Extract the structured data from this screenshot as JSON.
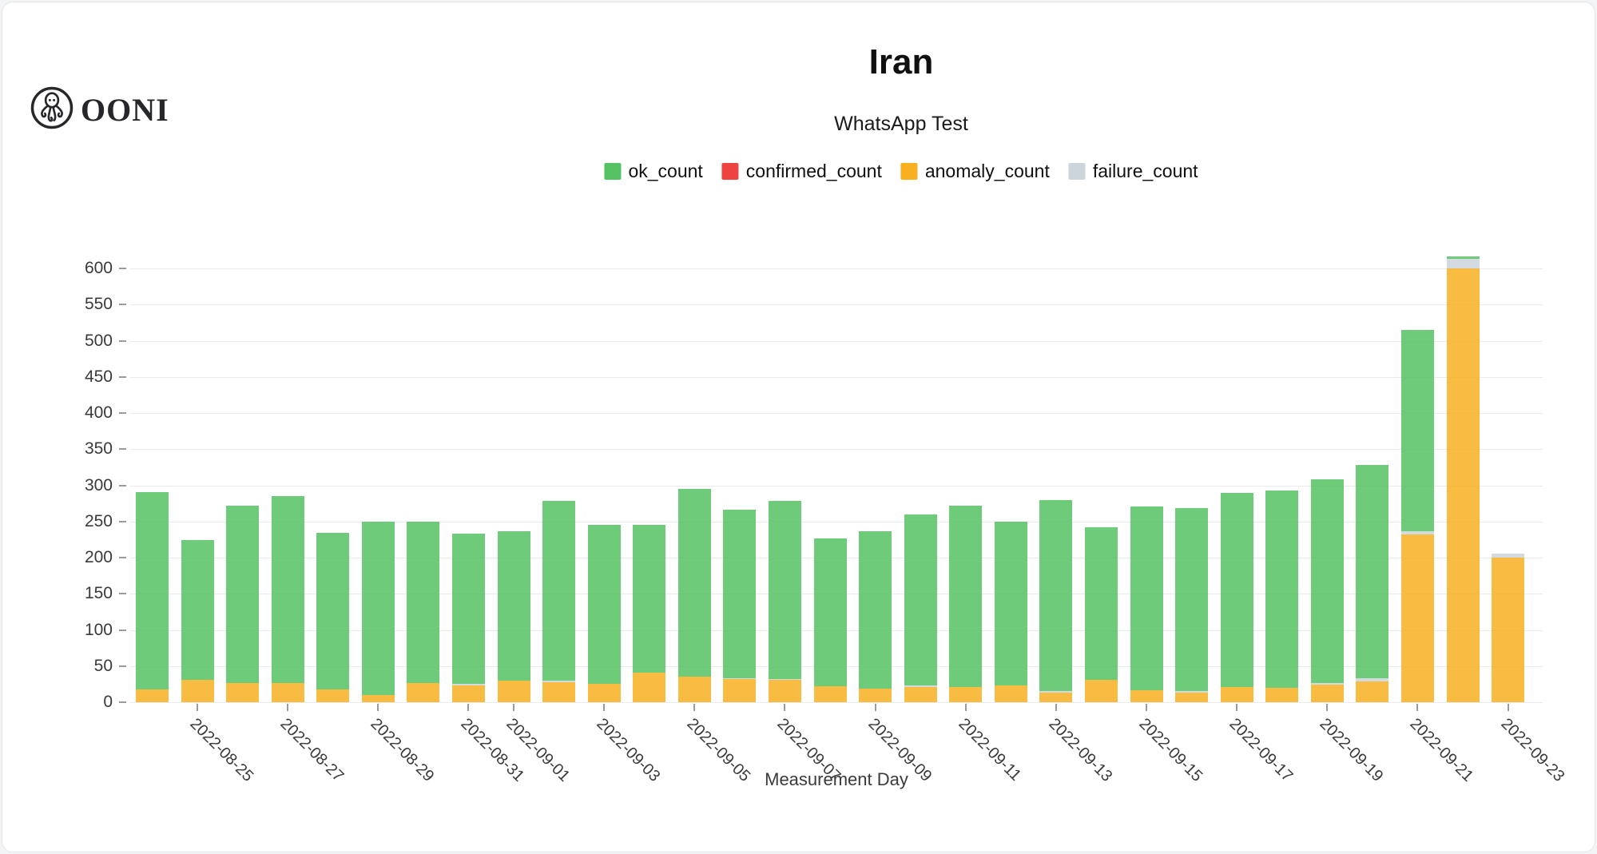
{
  "logo": {
    "text": "OONI"
  },
  "header": {
    "title": "Iran",
    "subtitle": "WhatsApp Test"
  },
  "legend": [
    {
      "label": "ok_count",
      "color": "#54c262"
    },
    {
      "label": "confirmed_count",
      "color": "#ee443f"
    },
    {
      "label": "anomaly_count",
      "color": "#f8b021"
    },
    {
      "label": "failure_count",
      "color": "#ccd5db"
    }
  ],
  "chart_data": {
    "type": "bar",
    "stacked": true,
    "title": "Iran",
    "subtitle": "WhatsApp Test",
    "xlabel": "Measurement Day",
    "ylabel": "",
    "grid": true,
    "legend_position": "top",
    "ylim": [
      0,
      640
    ],
    "ytick_step": 50,
    "ytick_max": 600,
    "x_tick_rule": "ticks and labels only on odd days of month, rotated 45deg",
    "stack_order_bottom_to_top": [
      "anomaly_count",
      "confirmed_count",
      "failure_count",
      "ok_count"
    ],
    "x": [
      "2022-08-24",
      "2022-08-25",
      "2022-08-26",
      "2022-08-27",
      "2022-08-28",
      "2022-08-29",
      "2022-08-30",
      "2022-08-31",
      "2022-09-01",
      "2022-09-02",
      "2022-09-03",
      "2022-09-04",
      "2022-09-05",
      "2022-09-06",
      "2022-09-07",
      "2022-09-08",
      "2022-09-09",
      "2022-09-10",
      "2022-09-11",
      "2022-09-12",
      "2022-09-13",
      "2022-09-14",
      "2022-09-15",
      "2022-09-16",
      "2022-09-17",
      "2022-09-18",
      "2022-09-19",
      "2022-09-20",
      "2022-09-21",
      "2022-09-22",
      "2022-09-23"
    ],
    "series": [
      {
        "name": "ok_count",
        "color": "#54c262",
        "values": [
          273,
          193,
          245,
          258,
          216,
          240,
          223,
          208,
          207,
          248,
          220,
          204,
          260,
          233,
          246,
          204,
          217,
          237,
          251,
          227,
          265,
          211,
          254,
          253,
          268,
          273,
          282,
          295,
          278,
          4,
          0
        ]
      },
      {
        "name": "confirmed_count",
        "color": "#ee443f",
        "values": [
          0,
          0,
          0,
          0,
          0,
          0,
          0,
          0,
          0,
          0,
          0,
          0,
          0,
          0,
          0,
          0,
          0,
          0,
          0,
          0,
          0,
          0,
          0,
          0,
          0,
          0,
          0,
          0,
          0,
          0,
          0
        ]
      },
      {
        "name": "anomaly_count",
        "color": "#f8b021",
        "values": [
          18,
          31,
          27,
          27,
          18,
          10,
          27,
          23,
          30,
          28,
          25,
          41,
          35,
          32,
          31,
          22,
          19,
          21,
          21,
          23,
          13,
          31,
          17,
          13,
          21,
          20,
          24,
          29,
          232,
          600,
          200
        ]
      },
      {
        "name": "failure_count",
        "color": "#ccd5db",
        "values": [
          0,
          0,
          0,
          0,
          0,
          0,
          0,
          2,
          0,
          2,
          0,
          0,
          0,
          1,
          1,
          0,
          0,
          2,
          0,
          0,
          2,
          0,
          0,
          2,
          0,
          0,
          2,
          4,
          5,
          13,
          5
        ]
      }
    ]
  }
}
